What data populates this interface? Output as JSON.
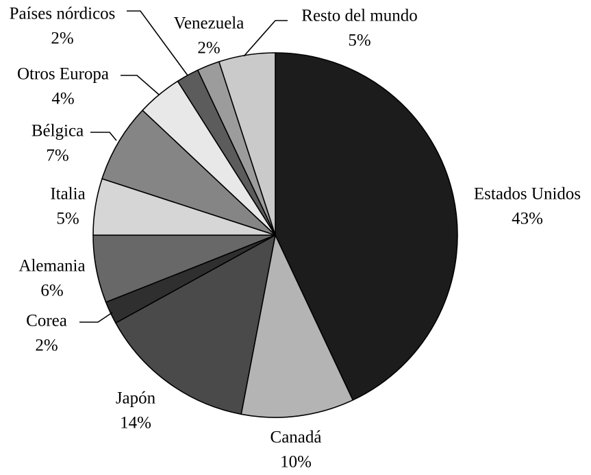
{
  "chart_data": {
    "type": "pie",
    "title": "",
    "start_angle_deg": 0,
    "direction": "clockwise",
    "slices": [
      {
        "label": "Estados Unidos",
        "value": 43,
        "value_label": "43%",
        "color": "#1c1c1c"
      },
      {
        "label": "Canadá",
        "value": 10,
        "value_label": "10%",
        "color": "#b4b4b4"
      },
      {
        "label": "Japón",
        "value": 14,
        "value_label": "14%",
        "color": "#4a4a4a"
      },
      {
        "label": "Corea",
        "value": 2,
        "value_label": "2%",
        "color": "#2f2f2f"
      },
      {
        "label": "Alemania",
        "value": 6,
        "value_label": "6%",
        "color": "#686868"
      },
      {
        "label": "Italia",
        "value": 5,
        "value_label": "5%",
        "color": "#d6d6d6"
      },
      {
        "label": "Bélgica",
        "value": 7,
        "value_label": "7%",
        "color": "#858585"
      },
      {
        "label": "Otros Europa",
        "value": 4,
        "value_label": "4%",
        "color": "#e8e8e8"
      },
      {
        "label": "Países nórdicos",
        "value": 2,
        "value_label": "2%",
        "color": "#5c5c5c"
      },
      {
        "label": "Venezuela",
        "value": 2,
        "value_label": "2%",
        "color": "#9c9c9c"
      },
      {
        "label": "Resto del mundo",
        "value": 5,
        "value_label": "5%",
        "color": "#cacaca"
      }
    ]
  }
}
